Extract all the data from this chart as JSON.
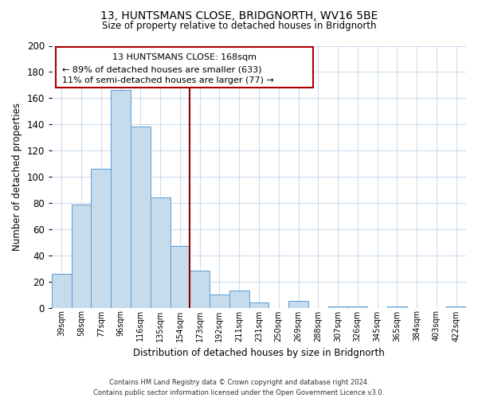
{
  "title": "13, HUNTSMANS CLOSE, BRIDGNORTH, WV16 5BE",
  "subtitle": "Size of property relative to detached houses in Bridgnorth",
  "xlabel": "Distribution of detached houses by size in Bridgnorth",
  "ylabel": "Number of detached properties",
  "bar_color": "#c6dcec",
  "bar_edge_color": "#5b9bd5",
  "background_color": "#ffffff",
  "grid_color": "#ccdded",
  "categories": [
    "39sqm",
    "58sqm",
    "77sqm",
    "96sqm",
    "116sqm",
    "135sqm",
    "154sqm",
    "173sqm",
    "192sqm",
    "211sqm",
    "231sqm",
    "250sqm",
    "269sqm",
    "288sqm",
    "307sqm",
    "326sqm",
    "345sqm",
    "365sqm",
    "384sqm",
    "403sqm",
    "422sqm"
  ],
  "values": [
    26,
    79,
    106,
    166,
    138,
    84,
    47,
    28,
    10,
    13,
    4,
    0,
    5,
    0,
    1,
    1,
    0,
    1,
    0,
    0,
    1
  ],
  "ylim": [
    0,
    200
  ],
  "yticks": [
    0,
    20,
    40,
    60,
    80,
    100,
    120,
    140,
    160,
    180,
    200
  ],
  "vline_x": 6.5,
  "vline_color": "#8b0000",
  "annotation_title": "13 HUNTSMANS CLOSE: 168sqm",
  "annotation_line1": "← 89% of detached houses are smaller (633)",
  "annotation_line2": "11% of semi-detached houses are larger (77) →",
  "annotation_box_color": "#ffffff",
  "annotation_box_edge": "#aa0000",
  "footer_line1": "Contains HM Land Registry data © Crown copyright and database right 2024.",
  "footer_line2": "Contains public sector information licensed under the Open Government Licence v3.0."
}
